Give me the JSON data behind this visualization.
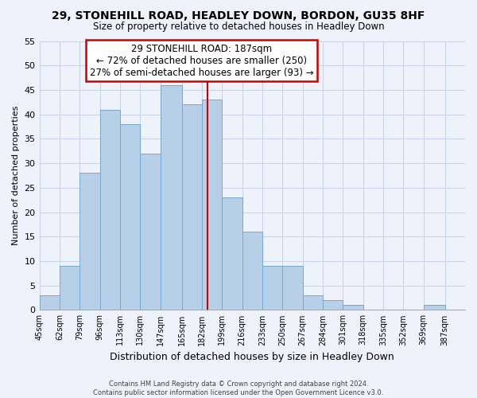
{
  "title1": "29, STONEHILL ROAD, HEADLEY DOWN, BORDON, GU35 8HF",
  "title2": "Size of property relative to detached houses in Headley Down",
  "xlabel": "Distribution of detached houses by size in Headley Down",
  "ylabel": "Number of detached properties",
  "bar_left_edges": [
    45,
    62,
    79,
    96,
    113,
    130,
    147,
    165,
    182,
    199,
    216,
    233,
    250,
    267,
    284,
    301,
    318,
    335,
    352,
    369
  ],
  "bar_heights": [
    3,
    9,
    28,
    41,
    38,
    32,
    46,
    42,
    43,
    23,
    16,
    9,
    9,
    3,
    2,
    1,
    0,
    0,
    0,
    1
  ],
  "bar_widths": [
    17,
    17,
    17,
    17,
    17,
    17,
    18,
    17,
    17,
    17,
    17,
    17,
    17,
    17,
    17,
    17,
    17,
    17,
    17,
    18
  ],
  "tick_labels": [
    "45sqm",
    "62sqm",
    "79sqm",
    "96sqm",
    "113sqm",
    "130sqm",
    "147sqm",
    "165sqm",
    "182sqm",
    "199sqm",
    "216sqm",
    "233sqm",
    "250sqm",
    "267sqm",
    "284sqm",
    "301sqm",
    "318sqm",
    "335sqm",
    "352sqm",
    "369sqm",
    "387sqm"
  ],
  "tick_positions": [
    45,
    62,
    79,
    96,
    113,
    130,
    147,
    165,
    182,
    199,
    216,
    233,
    250,
    267,
    284,
    301,
    318,
    335,
    352,
    369,
    387
  ],
  "bar_color": "#b8cfe8",
  "bar_edge_color": "#7aa8d4",
  "bar_edge_linewidth": 0.7,
  "vline_x": 187,
  "vline_color": "#cc0000",
  "ylim": [
    0,
    55
  ],
  "xlim": [
    45,
    404
  ],
  "yticks": [
    0,
    5,
    10,
    15,
    20,
    25,
    30,
    35,
    40,
    45,
    50,
    55
  ],
  "grid_color": "#c8d4e8",
  "background_color": "#eef2fa",
  "annotation_title": "29 STONEHILL ROAD: 187sqm",
  "annotation_line1": "← 72% of detached houses are smaller (250)",
  "annotation_line2": "27% of semi-detached houses are larger (93) →",
  "annotation_box_color": "#ffffff",
  "annotation_box_edge": "#cc0000",
  "footer1": "Contains HM Land Registry data © Crown copyright and database right 2024.",
  "footer2": "Contains public sector information licensed under the Open Government Licence v3.0."
}
